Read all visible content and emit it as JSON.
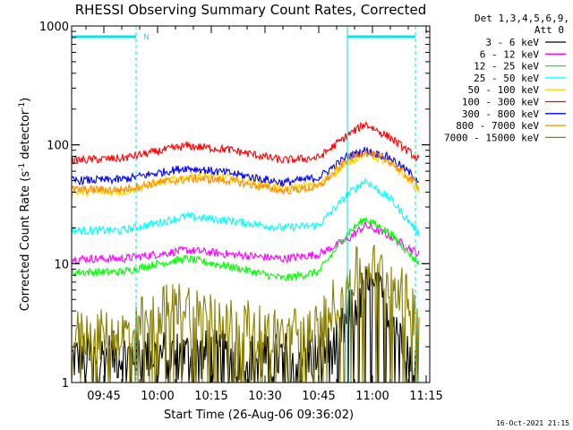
{
  "chart_data": {
    "type": "line",
    "title": "RHESSI Observing Summary Count Rates, Corrected",
    "xlabel": "Start Time (26-Aug-06 09:36:02)",
    "ylabel_pre": "Corrected Count Rate (s",
    "ylabel_mid": " detector",
    "ylabel_post": ")",
    "ylabel_exp": "-1",
    "y_scale": "log",
    "ylim": [
      1,
      1000
    ],
    "xlim": [
      "09:36",
      "11:16"
    ],
    "x_tick_labels": [
      "09:45",
      "10:00",
      "10:15",
      "10:30",
      "10:45",
      "11:00",
      "11:15"
    ],
    "y_tick_labels": [
      "1",
      "10",
      "100",
      "1000"
    ],
    "legend_header": [
      "Det 1,3,4,5,6,9,",
      "Att 0"
    ],
    "legend_position": "right",
    "markers": {
      "n_label": "N",
      "marker_times": [
        "09:54",
        "10:53",
        "11:12"
      ],
      "bar_ranges": [
        [
          "09:36",
          "09:54"
        ],
        [
          "10:53",
          "11:12"
        ]
      ],
      "color": "#00e5ee"
    },
    "footer_stamp": "16-Oct-2021 21:15",
    "series": [
      {
        "name": "3 - 6 keV",
        "color": "#000000",
        "keypoints": [
          [
            "09:36",
            1.6
          ],
          [
            "09:55",
            1.7
          ],
          [
            "10:15",
            1.7
          ],
          [
            "10:30",
            1.6
          ],
          [
            "10:45",
            1.7
          ],
          [
            "10:50",
            2.0
          ],
          [
            "10:53",
            3.5
          ],
          [
            "10:58",
            6.0
          ],
          [
            "11:03",
            5.0
          ],
          [
            "11:10",
            2.2
          ],
          [
            "11:13",
            1.5
          ]
        ]
      },
      {
        "name": "6 - 12 keV",
        "color": "#ff00ff",
        "keypoints": [
          [
            "09:36",
            11
          ],
          [
            "09:50",
            11
          ],
          [
            "10:00",
            12
          ],
          [
            "10:08",
            13
          ],
          [
            "10:20",
            12
          ],
          [
            "10:35",
            11
          ],
          [
            "10:45",
            12
          ],
          [
            "10:53",
            16
          ],
          [
            "10:58",
            21
          ],
          [
            "11:05",
            17
          ],
          [
            "11:13",
            12
          ]
        ]
      },
      {
        "name": "12 - 25 keV",
        "color": "#00ff00",
        "keypoints": [
          [
            "09:36",
            8.5
          ],
          [
            "09:50",
            8.5
          ],
          [
            "10:00",
            10
          ],
          [
            "10:08",
            11
          ],
          [
            "10:20",
            9.5
          ],
          [
            "10:35",
            7.5
          ],
          [
            "10:45",
            8.5
          ],
          [
            "10:53",
            18
          ],
          [
            "10:58",
            24
          ],
          [
            "11:05",
            18
          ],
          [
            "11:13",
            10
          ]
        ]
      },
      {
        "name": "25 - 50 keV",
        "color": "#00ffff",
        "keypoints": [
          [
            "09:36",
            19
          ],
          [
            "09:50",
            19
          ],
          [
            "10:00",
            22
          ],
          [
            "10:08",
            25
          ],
          [
            "10:20",
            23
          ],
          [
            "10:35",
            20
          ],
          [
            "10:45",
            21
          ],
          [
            "10:53",
            38
          ],
          [
            "10:58",
            50
          ],
          [
            "11:05",
            35
          ],
          [
            "11:13",
            18
          ]
        ]
      },
      {
        "name": "50 - 100 keV",
        "color": "#ffd700",
        "keypoints": [
          [
            "09:36",
            40
          ],
          [
            "09:50",
            40
          ],
          [
            "10:00",
            48
          ],
          [
            "10:10",
            55
          ],
          [
            "10:20",
            53
          ],
          [
            "10:35",
            43
          ],
          [
            "10:45",
            46
          ],
          [
            "10:53",
            70
          ],
          [
            "10:58",
            85
          ],
          [
            "11:05",
            70
          ],
          [
            "11:13",
            42
          ]
        ]
      },
      {
        "name": "100 - 300 keV",
        "color": "#ff0000",
        "keypoints": [
          [
            "09:36",
            74
          ],
          [
            "09:50",
            77
          ],
          [
            "10:00",
            88
          ],
          [
            "10:08",
            98
          ],
          [
            "10:20",
            91
          ],
          [
            "10:35",
            74
          ],
          [
            "10:45",
            78
          ],
          [
            "10:53",
            120
          ],
          [
            "10:58",
            150
          ],
          [
            "11:05",
            115
          ],
          [
            "11:13",
            75
          ]
        ]
      },
      {
        "name": "300 - 800 keV",
        "color": "#0000ff",
        "keypoints": [
          [
            "09:36",
            50
          ],
          [
            "09:50",
            51
          ],
          [
            "10:00",
            58
          ],
          [
            "10:08",
            64
          ],
          [
            "10:20",
            58
          ],
          [
            "10:35",
            48
          ],
          [
            "10:45",
            53
          ],
          [
            "10:53",
            80
          ],
          [
            "10:58",
            90
          ],
          [
            "11:05",
            78
          ],
          [
            "11:13",
            50
          ]
        ]
      },
      {
        "name": "800 - 7000 keV",
        "color": "#ff8c00",
        "keypoints": [
          [
            "09:36",
            42
          ],
          [
            "09:50",
            42
          ],
          [
            "10:00",
            48
          ],
          [
            "10:10",
            52
          ],
          [
            "10:20",
            50
          ],
          [
            "10:35",
            41
          ],
          [
            "10:45",
            44
          ],
          [
            "10:53",
            75
          ],
          [
            "10:58",
            88
          ],
          [
            "11:05",
            72
          ],
          [
            "11:13",
            45
          ]
        ]
      },
      {
        "name": "7000 - 15000 keV",
        "color": "#8b8000",
        "keypoints": [
          [
            "09:36",
            2.5
          ],
          [
            "09:50",
            2.5
          ],
          [
            "10:00",
            4.0
          ],
          [
            "10:08",
            4.5
          ],
          [
            "10:20",
            3.3
          ],
          [
            "10:35",
            2.5
          ],
          [
            "10:45",
            3.0
          ],
          [
            "10:53",
            7.0
          ],
          [
            "10:58",
            10
          ],
          [
            "11:05",
            8
          ],
          [
            "11:13",
            3.5
          ]
        ]
      }
    ]
  }
}
